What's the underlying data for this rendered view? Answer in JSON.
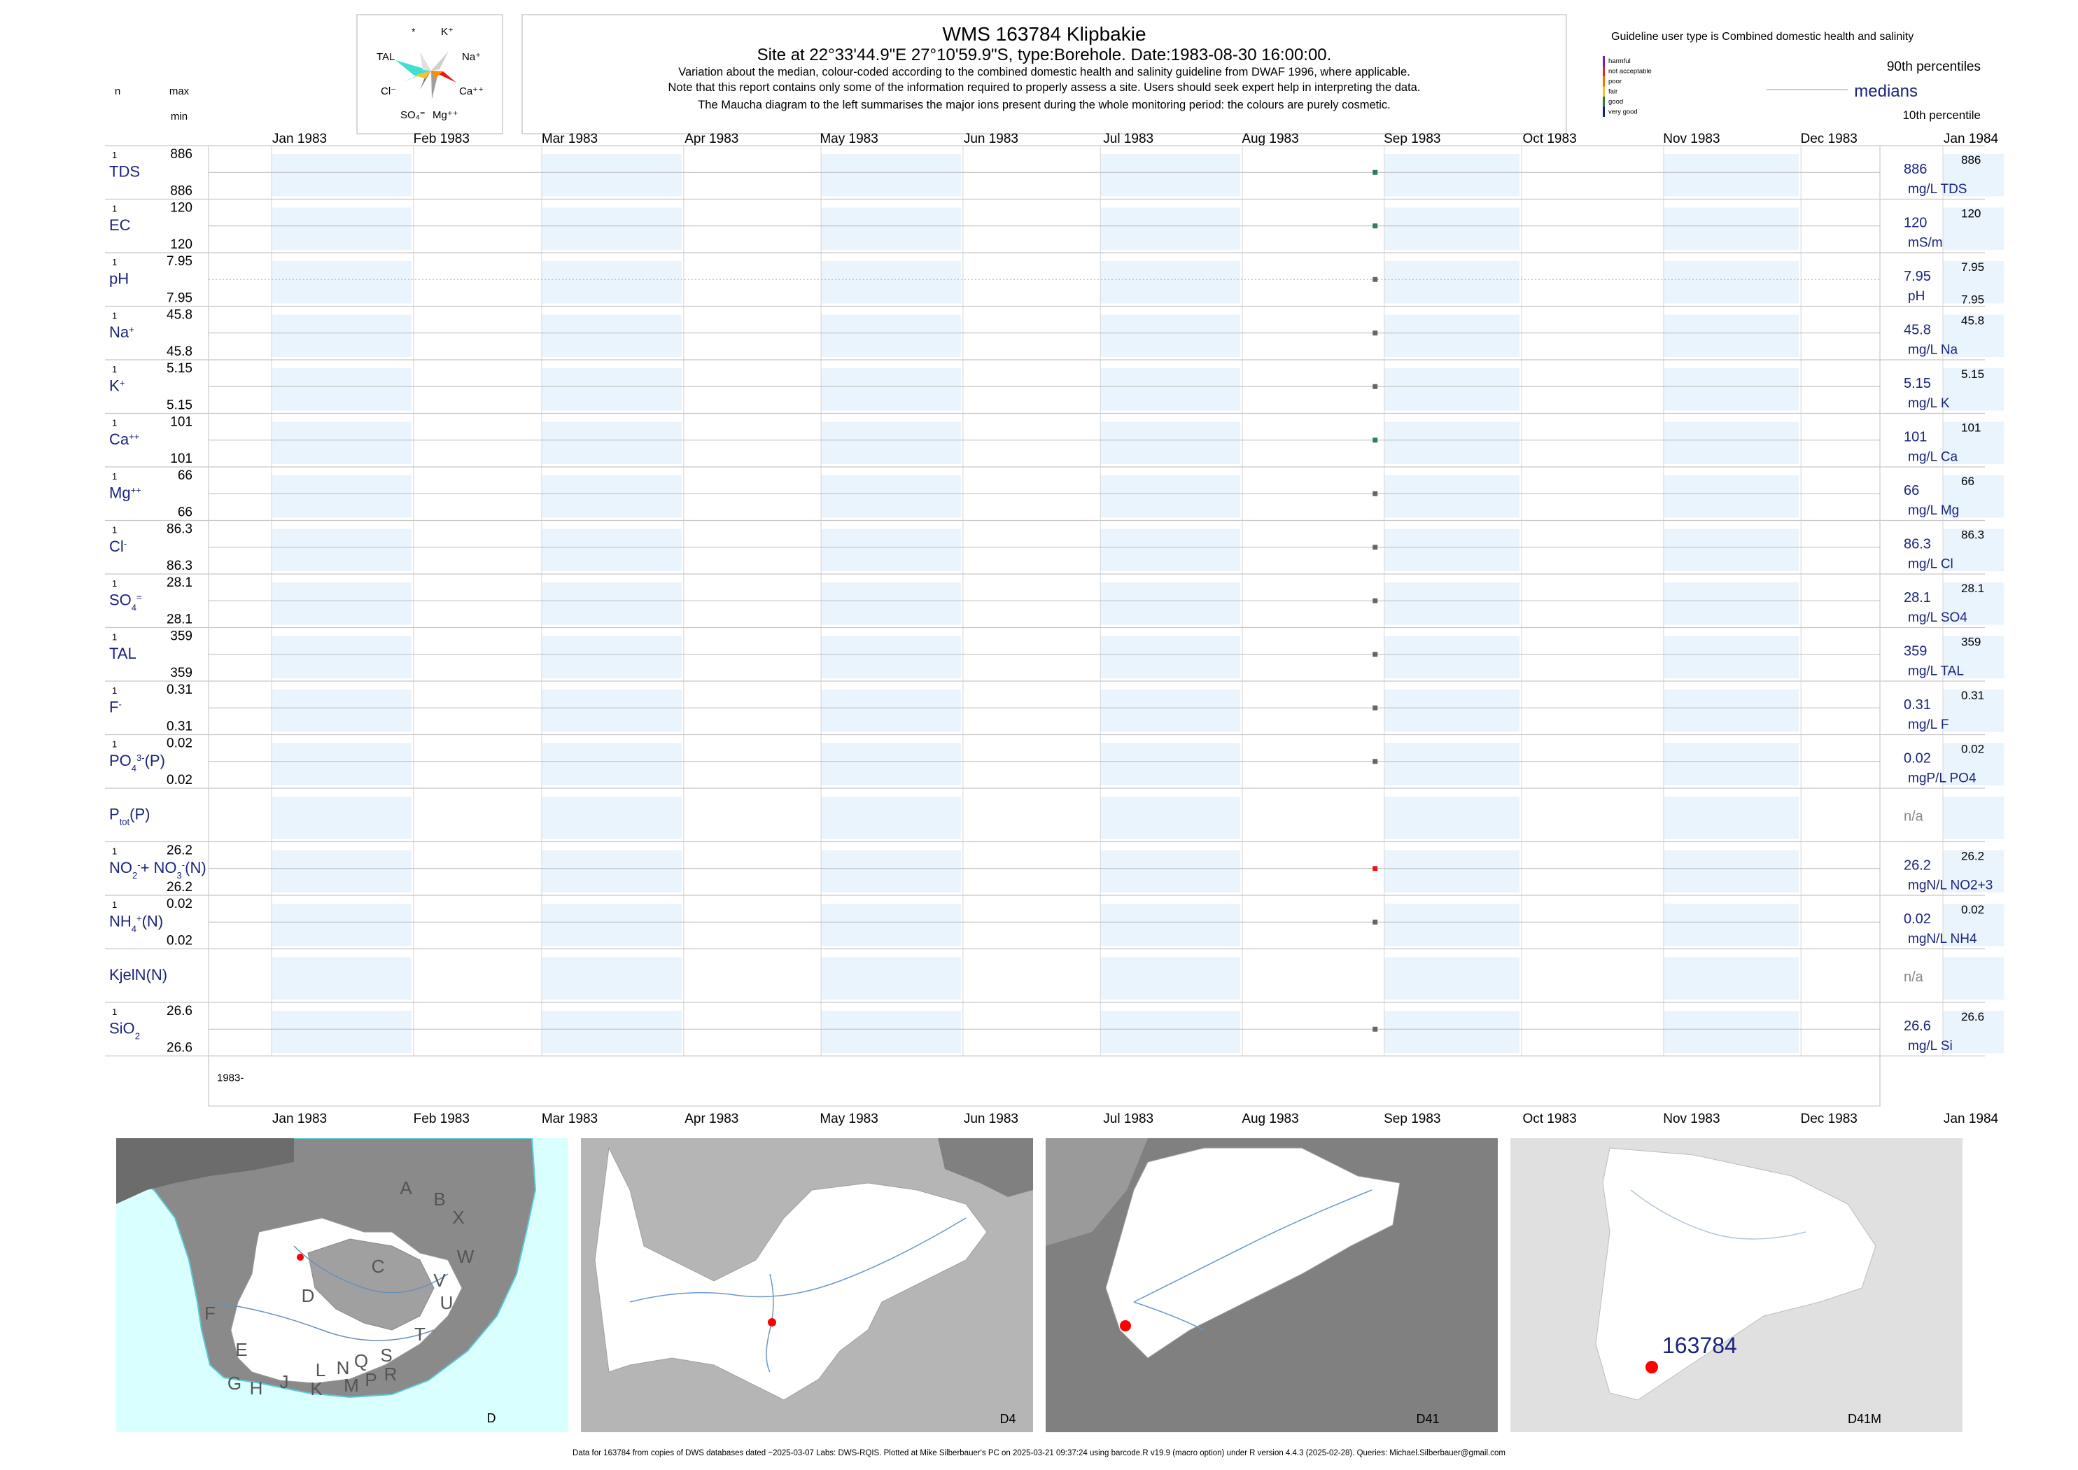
{
  "header": {
    "title": "WMS 163784  Klipbakie",
    "site_line": "Site at 22°33'44.9\"E 27°10'59.9\"S, type:Borehole. Date:1983-08-30 16:00:00.",
    "notes": [
      "Variation about the median,  colour-coded according to the combined domestic health and salinity guideline from DWAF 1996, where applicable.",
      "Note that this report contains only some of the information required to properly assess a site. Users should seek expert help in interpreting the data.",
      "The Maucha diagram to the left summarises the major ions present during the whole monitoring period: the colours are purely cosmetic."
    ],
    "col_n": "n",
    "col_max": "max",
    "col_min": "min"
  },
  "maucha": {
    "labels": [
      "*",
      "K⁺",
      "TAL",
      "Na⁺",
      "Cl⁻",
      "Ca⁺⁺",
      "SO₄⁼",
      "Mg⁺⁺"
    ]
  },
  "legend": {
    "guideline_title": "Guideline user type is Combined domestic health and salinity",
    "classes": [
      {
        "label": "harmful",
        "color": "#7b1fa2"
      },
      {
        "label": "not acceptable",
        "color": "#d32f2f"
      },
      {
        "label": "poor",
        "color": "#ff6f00"
      },
      {
        "label": "fair",
        "color": "#fbc02d"
      },
      {
        "label": "good",
        "color": "#2e7d32"
      },
      {
        "label": "very good",
        "color": "#1a237e"
      }
    ],
    "p90": "90th percentiles",
    "median": "medians",
    "p10": "10th percentile"
  },
  "chart_data": {
    "type": "scatter",
    "x_axis": {
      "range": [
        "1983-01-01",
        "1984-01-01"
      ],
      "ticks": [
        "Jan 1983",
        "Feb 1983",
        "Mar 1983",
        "Apr 1983",
        "May 1983",
        "Jun 1983",
        "Jul 1983",
        "Aug 1983",
        "Sep 1983",
        "Oct 1983",
        "Nov 1983",
        "Dec 1983",
        "Jan 1984"
      ],
      "bottom_label": "1983-"
    },
    "sample_date": "1983-08-30",
    "colors": {
      "good": "#2e7d5a",
      "neutral": "#666666",
      "not_acceptable": "#e8161b",
      "band": "#eaf4fd",
      "label": "#1a237e"
    },
    "series": [
      {
        "name": "TDS",
        "n": "1",
        "max": "886",
        "min": "886",
        "value": 886,
        "median": "886",
        "unit": "mg/L TDS",
        "p90": "886",
        "p10": "",
        "status": "good"
      },
      {
        "name": "EC",
        "n": "1",
        "max": "120",
        "min": "120",
        "value": 120,
        "median": "120",
        "unit": "mS/m",
        "p90": "120",
        "p10": "",
        "status": "good"
      },
      {
        "name": "pH",
        "n": "1",
        "max": "7.95",
        "min": "7.95",
        "value": 7.95,
        "median": "7.95",
        "unit": "pH",
        "p90": "7.95",
        "p10": "7.95",
        "status": "neutral",
        "guide": true
      },
      {
        "name": "Na",
        "n": "1",
        "max": "45.8",
        "min": "45.8",
        "value": 45.8,
        "median": "45.8",
        "unit": "mg/L Na",
        "p90": "45.8",
        "p10": "",
        "status": "neutral"
      },
      {
        "name": "K",
        "n": "1",
        "max": "5.15",
        "min": "5.15",
        "value": 5.15,
        "median": "5.15",
        "unit": "mg/L K",
        "p90": "5.15",
        "p10": "",
        "status": "neutral"
      },
      {
        "name": "Ca",
        "n": "1",
        "max": "101",
        "min": "101",
        "value": 101,
        "median": "101",
        "unit": "mg/L Ca",
        "p90": "101",
        "p10": "",
        "status": "good"
      },
      {
        "name": "Mg",
        "n": "1",
        "max": "66",
        "min": "66",
        "value": 66,
        "median": "66",
        "unit": "mg/L Mg",
        "p90": "66",
        "p10": "",
        "status": "neutral"
      },
      {
        "name": "Cl",
        "n": "1",
        "max": "86.3",
        "min": "86.3",
        "value": 86.3,
        "median": "86.3",
        "unit": "mg/L Cl",
        "p90": "86.3",
        "p10": "",
        "status": "neutral"
      },
      {
        "name": "SO4",
        "n": "1",
        "max": "28.1",
        "min": "28.1",
        "value": 28.1,
        "median": "28.1",
        "unit": "mg/L SO4",
        "p90": "28.1",
        "p10": "",
        "status": "neutral"
      },
      {
        "name": "TAL",
        "n": "1",
        "max": "359",
        "min": "359",
        "value": 359,
        "median": "359",
        "unit": "mg/L TAL",
        "p90": "359",
        "p10": "",
        "status": "neutral"
      },
      {
        "name": "F",
        "n": "1",
        "max": "0.31",
        "min": "0.31",
        "value": 0.31,
        "median": "0.31",
        "unit": "mg/L F",
        "p90": "0.31",
        "p10": "",
        "status": "neutral"
      },
      {
        "name": "PO4",
        "n": "1",
        "max": "0.02",
        "min": "0.02",
        "value": 0.02,
        "median": "0.02",
        "unit": "mgP/L PO4",
        "p90": "0.02",
        "p10": "",
        "status": "neutral"
      },
      {
        "name": "Ptot",
        "n": "",
        "max": "",
        "min": "",
        "value": null,
        "median": "n/a",
        "unit": "",
        "p90": "",
        "p10": "",
        "status": "none"
      },
      {
        "name": "NO2+NO3",
        "n": "1",
        "max": "26.2",
        "min": "26.2",
        "value": 26.2,
        "median": "26.2",
        "unit": "mgN/L NO2+3",
        "p90": "26.2",
        "p10": "",
        "status": "not_acceptable"
      },
      {
        "name": "NH4",
        "n": "1",
        "max": "0.02",
        "min": "0.02",
        "value": 0.02,
        "median": "0.02",
        "unit": "mgN/L NH4",
        "p90": "0.02",
        "p10": "",
        "status": "neutral"
      },
      {
        "name": "KjelN",
        "n": "",
        "max": "",
        "min": "",
        "value": null,
        "median": "n/a",
        "unit": "",
        "p90": "",
        "p10": "",
        "status": "none"
      },
      {
        "name": "SiO2",
        "n": "1",
        "max": "26.6",
        "min": "26.6",
        "value": 26.6,
        "median": "26.6",
        "unit": "mg/L Si",
        "p90": "26.6",
        "p10": "",
        "status": "neutral"
      }
    ]
  },
  "maps": {
    "panel_labels": [
      "D",
      "D4",
      "D41",
      "D41M"
    ],
    "region_letters": [
      "A",
      "B",
      "X",
      "W",
      "C",
      "V",
      "U",
      "T",
      "D",
      "F",
      "E",
      "G",
      "H",
      "J",
      "K",
      "L",
      "N",
      "M",
      "Q",
      "P",
      "S",
      "R"
    ],
    "site_label": "163784",
    "site_color": "#ff0000"
  },
  "footer": "Data for 163784 from copies of DWS databases dated ~2025-03-07 Labs: DWS-RQIS. Plotted at Mike Silberbauer's PC on 2025-03-21 09:37:24 using barcode.R v19.9 (macro option) under R version 4.4.3 (2025-02-28). Queries: Michael.Silberbauer@gmail.com"
}
